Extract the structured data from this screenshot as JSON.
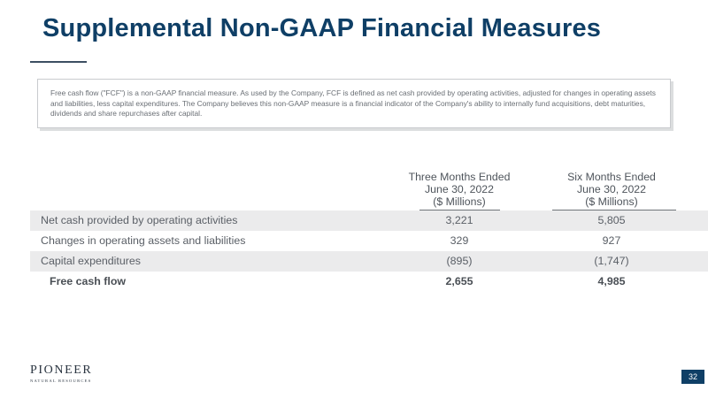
{
  "title": "Supplemental Non-GAAP Financial Measures",
  "callout": "Free cash flow (\"FCF\") is a non-GAAP financial measure. As used by the Company, FCF is defined as net cash provided by operating activities, adjusted for changes in operating assets and liabilities, less capital expenditures. The Company believes this non-GAAP measure is a financial indicator of the Company's ability to internally fund acquisitions, debt maturities, dividends and share repurchases after capital.",
  "table": {
    "columns": [
      {
        "line1": "Three Months Ended",
        "line2": "June 30, 2022",
        "line3": "($ Millions)"
      },
      {
        "line1": "Six Months Ended",
        "line2": "June 30, 2022",
        "line3": "($ Millions)"
      }
    ],
    "rows": [
      {
        "label": "Net cash provided by operating activities",
        "v1": "3,221",
        "v2": "5,805"
      },
      {
        "label": "Changes in operating assets and liabilities",
        "v1": "329",
        "v2": "927"
      },
      {
        "label": "Capital expenditures",
        "v1": "(895)",
        "v2": "(1,747)"
      },
      {
        "label": "Free cash flow",
        "v1": "2,655",
        "v2": "4,985"
      }
    ]
  },
  "footer": {
    "logo_main": "PIONEER",
    "logo_sub": "NATURAL RESOURCES",
    "page_number": "32"
  }
}
